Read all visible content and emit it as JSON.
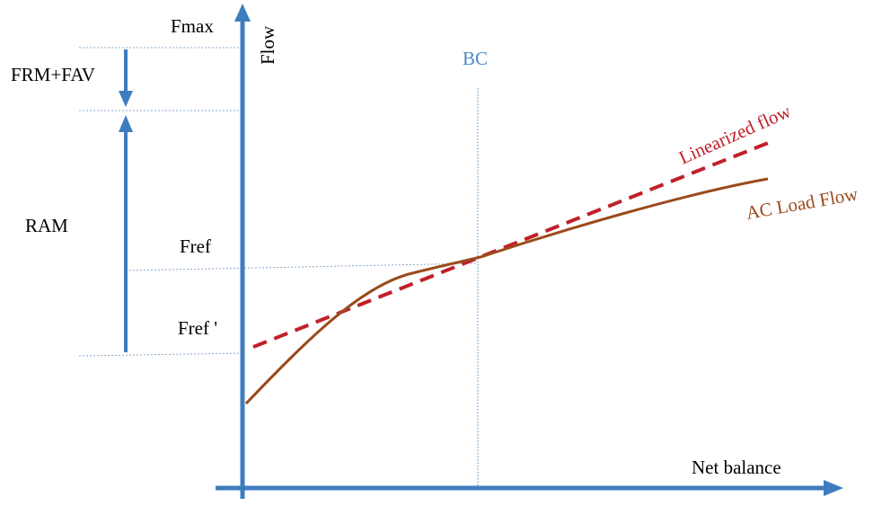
{
  "labels": {
    "fmax": "Fmax",
    "frm_fav": "FRM+FAV",
    "ram": "RAM",
    "fref": "Fref",
    "fref_prime": "Fref '",
    "flow_axis": "Flow",
    "bc": "BC",
    "linearized": "Linearized  flow",
    "ac_load_flow": "AC Load Flow",
    "net_balance": "Net balance"
  },
  "colors": {
    "axis": "#3d7dbf",
    "guide": "#8aa8c8",
    "bc": "#4a89c2",
    "linearized": "#c0202a",
    "ac_load_flow": "#9b4a1c",
    "text": "#000000"
  }
}
